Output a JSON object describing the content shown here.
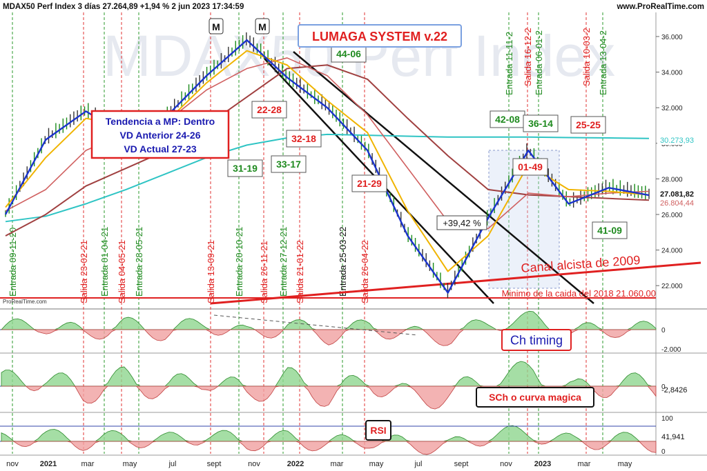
{
  "header": {
    "title": "MDAX50 Perf Index 3 días 27.264,89 +1,94 % 2 jun 2023 17:34:59",
    "site": "www.ProRealTime.com"
  },
  "watermark": "MDAX50 Perf Index",
  "credit": "ProRealTime.com",
  "chart_data": {
    "type": "line",
    "main": {
      "y_ticks": [
        "36.000",
        "34.000",
        "32.000",
        "30.000",
        "28.000",
        "26.000",
        "24.000",
        "22.000"
      ],
      "ylim": [
        21000,
        37200
      ],
      "x": [
        "nov-20",
        "2021-01",
        "mar-21",
        "may-21",
        "jul-21",
        "sept-21",
        "nov-21",
        "2022-01",
        "mar-22",
        "may-22",
        "jul-22",
        "sept-22",
        "nov-22",
        "2023-01",
        "mar-23",
        "may-23",
        "jun-23"
      ],
      "price": [
        26000,
        30200,
        31800,
        30400,
        31500,
        33800,
        35800,
        33700,
        32000,
        29600,
        24800,
        21600,
        25800,
        29600,
        26600,
        27500,
        27082
      ],
      "sma20": [
        26400,
        29200,
        31400,
        31000,
        31200,
        33400,
        35200,
        34400,
        32400,
        30600,
        26200,
        22800,
        24800,
        28800,
        27400,
        27300,
        27100
      ],
      "sma50": [
        26200,
        27400,
        29600,
        30600,
        31200,
        33000,
        34200,
        34800,
        33800,
        31600,
        28600,
        25600,
        25200,
        27200,
        27000,
        27200,
        27300
      ],
      "sma100": [
        24800,
        26000,
        27600,
        28600,
        29600,
        31000,
        32600,
        34200,
        34400,
        33600,
        31400,
        29300,
        27400,
        27100,
        27000,
        26900,
        26804
      ],
      "sma200": [
        25600,
        25900,
        26600,
        27400,
        28300,
        29200,
        29900,
        30300,
        30500,
        30450,
        30400,
        30350,
        30350,
        30350,
        30320,
        30300,
        30274
      ],
      "last_values": [
        "30.273,93",
        "27.081,82",
        "26.804,44"
      ],
      "series_colors": {
        "price": "#1a33cc",
        "sma20": "#f0b400",
        "sma50": "#d06060",
        "sma100": "#a04040",
        "sma200": "#2ec4c4",
        "candles": "#1a8a1a"
      }
    },
    "signals": {
      "entrada": [
        "Entrada 09-11-20",
        "Entrada 01-04-21",
        "Entrada 28-05-21",
        "Entrada 20-10-21",
        "Entrada 27-12-21",
        "Entrada 25-03-22",
        "Entrada 11-11-2",
        "Entrada 06-01-2",
        "Entrada 13-04-2"
      ],
      "salida": [
        "Salida 23-02-21",
        "Salida 04-05-21",
        "Salida 13-09-21",
        "Salida 26-11-21",
        "Salida 21-01-22",
        "Salida 26-04-22",
        "Salida 16-12-2",
        "Salida 10-03-2"
      ]
    },
    "ratio_labels": {
      "green": [
        "44-06",
        "31-19",
        "33-17",
        "42-08",
        "36-14",
        "41-09"
      ],
      "red": [
        "22-28",
        "32-18",
        "21-29",
        "01-49",
        "25-25"
      ]
    },
    "annotations": {
      "system": "LUMAGA SYSTEM v.22",
      "trend_box": [
        "Tendencia a MP: Dentro",
        "VD Anterior 24-26",
        "VD Actual 27-23"
      ],
      "gain": "+39,42 %",
      "canal": "Canal alcista de 2009",
      "minimo": "Minimo de la caida del 2018 21.060,00",
      "m_markers": [
        "M",
        "M"
      ]
    },
    "indicators": [
      {
        "name": "Ch timing",
        "ticks": [
          "0",
          "-2.000"
        ],
        "value": "",
        "values": [
          0.0,
          0.5,
          -0.4,
          0.4,
          -0.3,
          0.6,
          -0.5,
          0.4,
          -0.6,
          0.3,
          -0.5,
          -0.7,
          0.7,
          0.9,
          -0.3,
          0.1,
          -0.1
        ]
      },
      {
        "name": "SCh o curva magica",
        "ticks": [
          "0"
        ],
        "value": "-2,8426",
        "values": [
          0.2,
          0.6,
          -0.5,
          0.5,
          -0.3,
          0.6,
          -0.6,
          0.5,
          -0.7,
          0.4,
          -0.8,
          -0.6,
          0.6,
          0.9,
          -0.4,
          0.2,
          -0.1
        ]
      },
      {
        "name": "RSI",
        "ticks": [
          "100",
          "0"
        ],
        "value": "41,941",
        "values": [
          52,
          65,
          48,
          60,
          50,
          68,
          45,
          58,
          40,
          55,
          38,
          35,
          70,
          72,
          45,
          55,
          42
        ]
      }
    ],
    "x_axis_labels": [
      "nov",
      "2021",
      "mar",
      "may",
      "jul",
      "sept",
      "nov",
      "2022",
      "mar",
      "may",
      "jul",
      "sept",
      "nov",
      "2023",
      "mar",
      "may"
    ]
  }
}
